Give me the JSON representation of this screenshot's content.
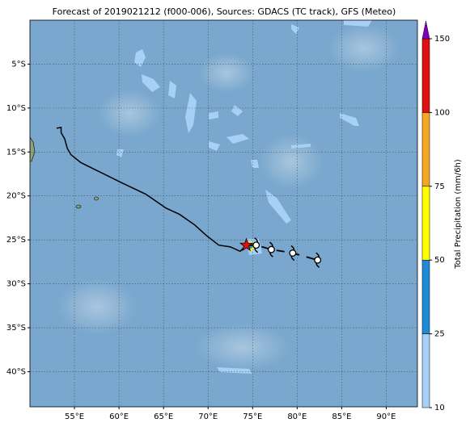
{
  "map": {
    "title": "Forecast of 2019021212 (f000-006), Sources: GDACS (TC track), GFS (Meteo)",
    "xlim": [
      50,
      93.5
    ],
    "ylim": [
      -44,
      0
    ],
    "xticks": [
      {
        "value": 55,
        "label": "55°E"
      },
      {
        "value": 60,
        "label": "60°E"
      },
      {
        "value": 65,
        "label": "65°E"
      },
      {
        "value": 70,
        "label": "70°E"
      },
      {
        "value": 75,
        "label": "75°E"
      },
      {
        "value": 80,
        "label": "80°E"
      },
      {
        "value": 85,
        "label": "85°E"
      },
      {
        "value": 90,
        "label": "90°E"
      }
    ],
    "yticks": [
      {
        "value": -5,
        "label": "5°S"
      },
      {
        "value": -10,
        "label": "10°S"
      },
      {
        "value": -15,
        "label": "15°S"
      },
      {
        "value": -20,
        "label": "20°S"
      },
      {
        "value": -25,
        "label": "25°S"
      },
      {
        "value": -30,
        "label": "30°S"
      },
      {
        "value": -35,
        "label": "35°S"
      },
      {
        "value": -40,
        "label": "40°S"
      }
    ],
    "track_lon": [
      53.0,
      53.5,
      53.5,
      53.9,
      54.2,
      54.6,
      55.7,
      57.5,
      60.3,
      63.0,
      65.3,
      66.8,
      68.5,
      69.8,
      71.2,
      72.5,
      73.6,
      74.3
    ],
    "track_lat": [
      -12.3,
      -12.2,
      -12.8,
      -13.5,
      -14.6,
      -15.3,
      -16.2,
      -17.1,
      -18.5,
      -19.8,
      -21.4,
      -22.1,
      -23.3,
      -24.5,
      -25.6,
      -25.8,
      -26.3,
      -25.6
    ],
    "current_lon": 74.3,
    "current_lat": -25.6,
    "forecast_lon": [
      75.4,
      77.1,
      79.5,
      82.3
    ],
    "forecast_lat": [
      -25.6,
      -26.1,
      -26.5,
      -27.3
    ],
    "track_color": "#000000",
    "current_color": "#e01010",
    "colorbar": {
      "label": "Total Precipitation (mm/6h)",
      "ticks": [
        10,
        25,
        50,
        75,
        100,
        150
      ],
      "colors": [
        "#a6d0f5",
        "#1f8ad6",
        "#ffff00",
        "#f5a623",
        "#e01010"
      ],
      "extend_color": "#8000c0"
    }
  }
}
